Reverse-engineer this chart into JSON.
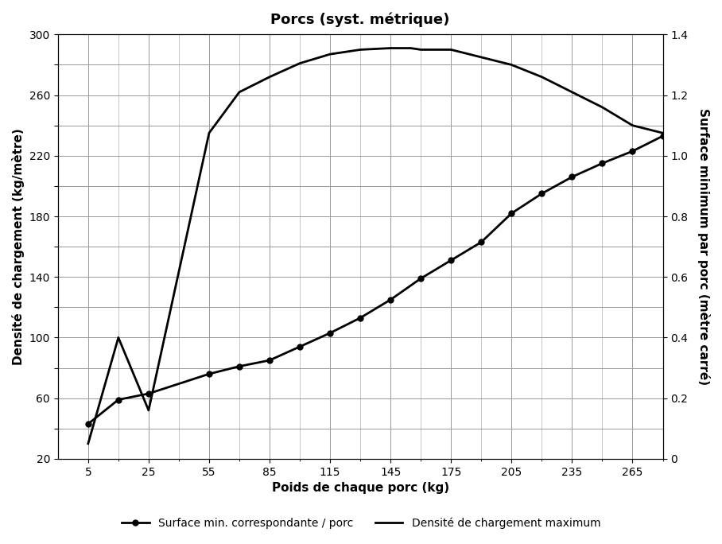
{
  "title": "Porcs (syst. métrique)",
  "xlabel": "Poids de chaque porc (kg)",
  "ylabel_left": "Densité de chargement (kg/mètre)",
  "ylabel_right": "Surface minimum par porc (mètre carré)",
  "xtick_labels": [
    "5",
    "25",
    "55",
    "85",
    "115",
    "145",
    "175",
    "205",
    "235",
    "265"
  ],
  "xtick_positions": [
    0,
    1,
    2,
    3,
    4,
    5,
    6,
    7,
    8,
    9
  ],
  "xlim": [
    -0.5,
    9.5
  ],
  "ylim_left": [
    20,
    300
  ],
  "ylim_right": [
    0,
    1.4
  ],
  "yticks_left": [
    20,
    60,
    100,
    140,
    180,
    220,
    260,
    300
  ],
  "yticks_right": [
    0.0,
    0.2,
    0.4,
    0.6,
    0.8,
    1.0,
    1.2,
    1.4
  ],
  "surface_x": [
    0,
    0.5,
    1,
    2,
    2.5,
    3,
    3.5,
    4,
    4.5,
    5,
    5.5,
    6,
    6.5,
    7,
    7.5,
    8,
    8.5,
    9,
    9.5
  ],
  "surface_y": [
    0.115,
    0.195,
    0.215,
    0.28,
    0.305,
    0.325,
    0.37,
    0.415,
    0.465,
    0.525,
    0.595,
    0.655,
    0.715,
    0.81,
    0.875,
    0.93,
    0.975,
    1.015,
    1.065
  ],
  "densite_x": [
    0,
    0.5,
    1,
    2,
    2.5,
    3,
    3.5,
    4,
    4.5,
    5,
    5.333,
    5.5,
    6,
    6.5,
    7,
    7.5,
    8,
    8.5,
    9,
    9.5
  ],
  "densite_y": [
    30,
    100,
    52,
    235,
    262,
    272,
    281,
    287,
    290,
    291,
    291,
    290,
    290,
    285,
    280,
    272,
    262,
    252,
    240,
    235
  ],
  "line_color": "black",
  "marker_style": "o",
  "marker_size": 5,
  "legend_labels": [
    "Surface min. correspondante / porc",
    "Densité de chargement maximum"
  ],
  "title_fontsize": 13,
  "label_fontsize": 11,
  "tick_fontsize": 10,
  "legend_fontsize": 10,
  "grid_color": "#999999",
  "background_color": "#ffffff"
}
